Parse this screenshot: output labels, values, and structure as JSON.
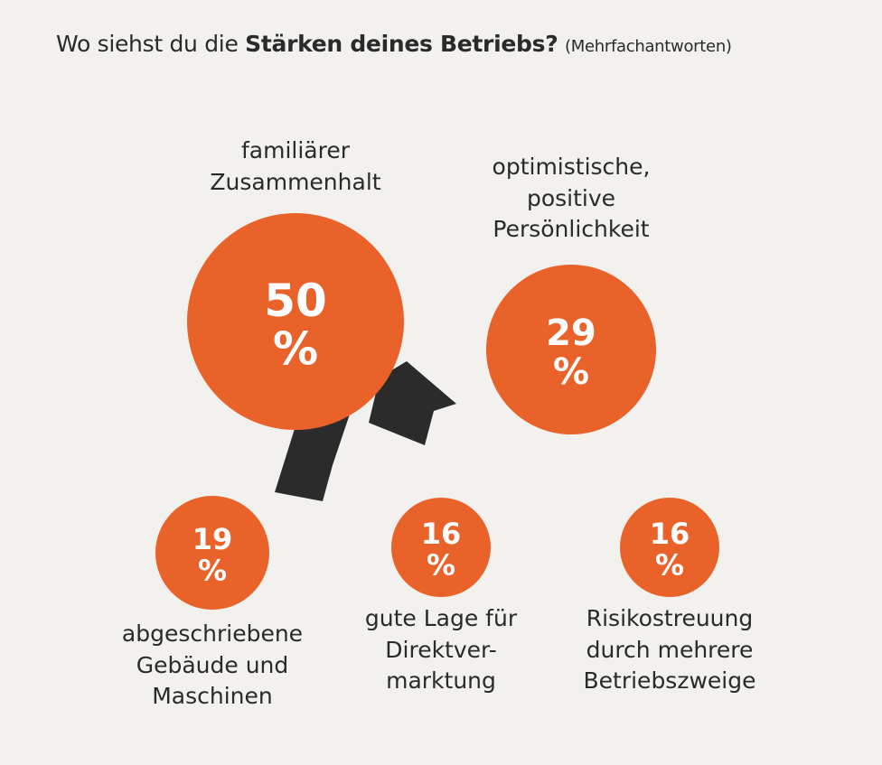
{
  "header": {
    "title_normal": "Wo siehst du die ",
    "title_bold": "Stärken deines Betriebs?",
    "title_note": "(Mehrfachantworten)"
  },
  "colors": {
    "bubble": "#e8622a",
    "ribbon": "#2b2b2b",
    "background": "#f2f1ee",
    "text": "#2a2a2a"
  },
  "chart_data": {
    "type": "bubble",
    "title": "Wo siehst du die Stärken deines Betriebs? (Mehrfachantworten)",
    "unit": "%",
    "categories": [
      "familiärer Zusammenhalt",
      "optimistische, positive Persönlichkeit",
      "abgeschriebene Gebäude und Maschinen",
      "gute Lage für Direktvermarktung",
      "Risikostreuung durch mehrere Betriebszweige"
    ],
    "values": [
      50,
      29,
      19,
      16,
      16
    ],
    "value_labels": [
      "50",
      "29",
      "19",
      "16",
      "16"
    ],
    "labels": [
      [
        "familiärer",
        "Zusammenhalt"
      ],
      [
        "optimistische,",
        "positive",
        "Persönlichkeit"
      ],
      [
        "abgeschriebene",
        "Gebäude und",
        "Maschinen"
      ],
      [
        "gute Lage für",
        "Direktver-",
        "marktung"
      ],
      [
        "Risikostreuung",
        "durch mehrere",
        "Betriebszweige"
      ]
    ]
  }
}
